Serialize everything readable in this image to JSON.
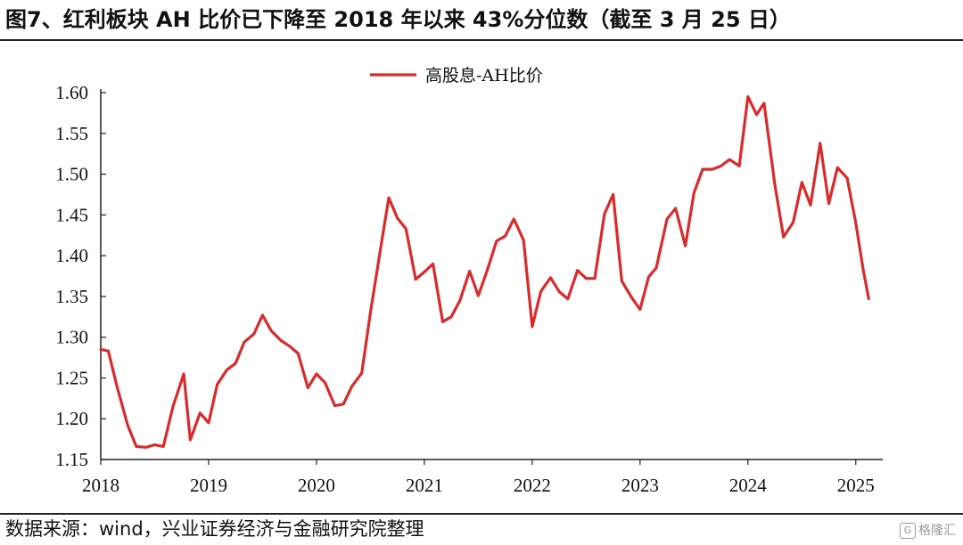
{
  "title": "图7、红利板块 AH 比价已下降至 2018 年以来 43%分位数（截至 3 月 25 日）",
  "source": "数据来源：wind，兴业证券经济与金融研究院整理",
  "watermark": "格隆汇",
  "colors": {
    "series": "#d92b2b",
    "axis": "#222222"
  },
  "chart_data": {
    "type": "line",
    "title": "",
    "xlabel": "",
    "ylabel": "",
    "ylim": [
      1.15,
      1.6
    ],
    "yticks": [
      "1.15",
      "1.20",
      "1.25",
      "1.30",
      "1.35",
      "1.40",
      "1.45",
      "1.50",
      "1.55",
      "1.60"
    ],
    "xlim": [
      2018.0,
      2025.25
    ],
    "xticks": [
      "2018",
      "2019",
      "2020",
      "2021",
      "2022",
      "2023",
      "2024",
      "2025"
    ],
    "legend_position": "top-center",
    "series": [
      {
        "name": "高股息-AH比价",
        "x": [
          2018.0,
          2018.07,
          2018.15,
          2018.25,
          2018.33,
          2018.42,
          2018.5,
          2018.58,
          2018.67,
          2018.77,
          2018.83,
          2018.92,
          2019.0,
          2019.08,
          2019.17,
          2019.25,
          2019.33,
          2019.42,
          2019.5,
          2019.58,
          2019.67,
          2019.75,
          2019.83,
          2019.92,
          2020.0,
          2020.08,
          2020.17,
          2020.25,
          2020.33,
          2020.42,
          2020.5,
          2020.58,
          2020.67,
          2020.75,
          2020.83,
          2020.92,
          2021.0,
          2021.08,
          2021.17,
          2021.25,
          2021.33,
          2021.42,
          2021.5,
          2021.58,
          2021.67,
          2021.75,
          2021.83,
          2021.92,
          2022.0,
          2022.08,
          2022.17,
          2022.25,
          2022.33,
          2022.42,
          2022.5,
          2022.58,
          2022.67,
          2022.75,
          2022.83,
          2022.92,
          2023.0,
          2023.08,
          2023.15,
          2023.25,
          2023.33,
          2023.42,
          2023.5,
          2023.58,
          2023.67,
          2023.75,
          2023.83,
          2023.92,
          2024.0,
          2024.08,
          2024.15,
          2024.25,
          2024.33,
          2024.42,
          2024.5,
          2024.58,
          2024.67,
          2024.75,
          2024.83,
          2024.92,
          2025.0,
          2025.07,
          2025.12
        ],
        "values": [
          1.285,
          1.283,
          1.24,
          1.192,
          1.166,
          1.165,
          1.168,
          1.166,
          1.215,
          1.255,
          1.174,
          1.207,
          1.195,
          1.242,
          1.26,
          1.268,
          1.294,
          1.304,
          1.327,
          1.308,
          1.296,
          1.289,
          1.28,
          1.238,
          1.255,
          1.244,
          1.216,
          1.218,
          1.24,
          1.256,
          1.33,
          1.397,
          1.471,
          1.446,
          1.433,
          1.371,
          1.38,
          1.39,
          1.319,
          1.325,
          1.345,
          1.381,
          1.351,
          1.381,
          1.418,
          1.424,
          1.445,
          1.419,
          1.313,
          1.356,
          1.373,
          1.356,
          1.347,
          1.382,
          1.372,
          1.372,
          1.451,
          1.475,
          1.369,
          1.349,
          1.334,
          1.374,
          1.385,
          1.445,
          1.458,
          1.412,
          1.477,
          1.506,
          1.506,
          1.51,
          1.518,
          1.51,
          1.595,
          1.573,
          1.587,
          1.487,
          1.423,
          1.441,
          1.49,
          1.462,
          1.538,
          1.464,
          1.508,
          1.495,
          1.44,
          1.382,
          1.347
        ]
      }
    ]
  }
}
